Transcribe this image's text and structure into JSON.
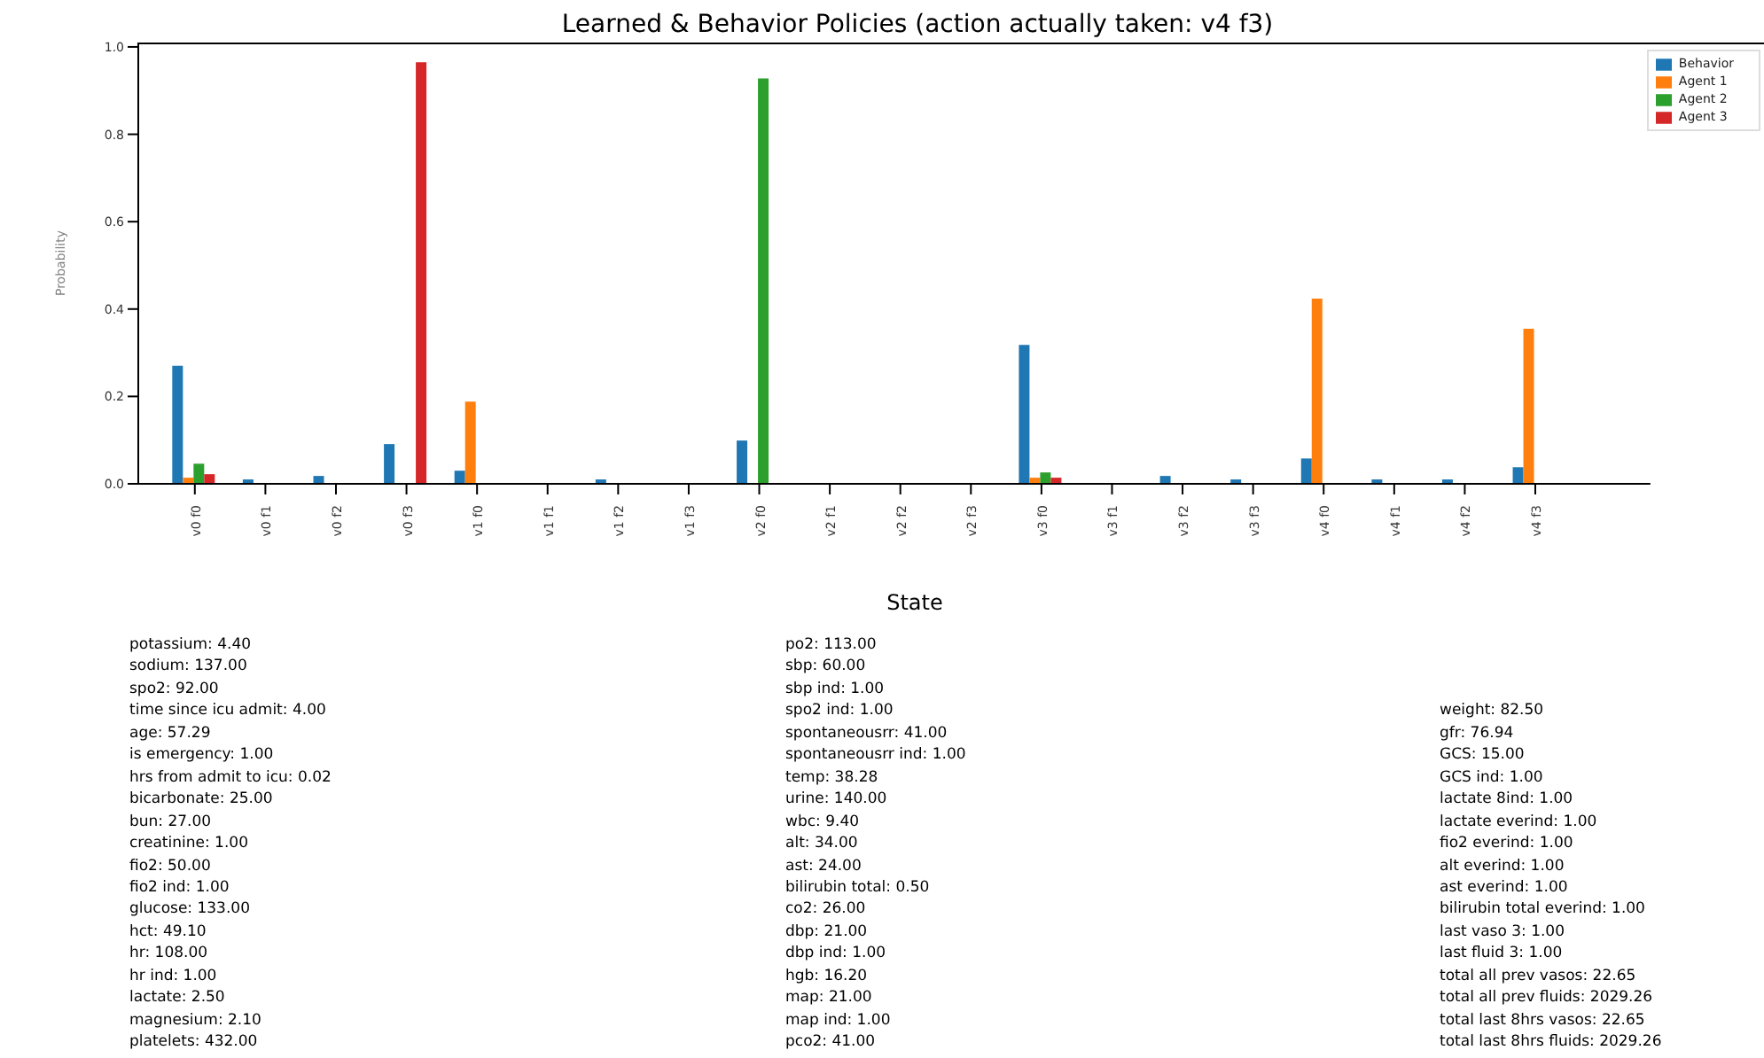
{
  "chart_data": [
    {
      "type": "bar",
      "title": "Learned & Behavior Policies (action actually taken: v4 f3)",
      "ylabel": "Probability",
      "categories": [
        "v0 f0",
        "v0 f1",
        "v0 f2",
        "v0 f3",
        "v1 f0",
        "v1 f1",
        "v1 f2",
        "v1 f3",
        "v2 f0",
        "v2 f1",
        "v2 f2",
        "v2 f3",
        "v3 f0",
        "v3 f1",
        "v3 f2",
        "v3 f3",
        "v4 f0",
        "v4 f1",
        "v4 f2",
        "v4 f3"
      ],
      "series": [
        {
          "name": "Behavior",
          "color": "#1f77b4",
          "values": [
            0.27,
            0.01,
            0.018,
            0.091,
            0.03,
            0,
            0.01,
            0,
            0.099,
            0,
            0,
            0,
            0.318,
            0,
            0.018,
            0.01,
            0.058,
            0.01,
            0.01,
            0.038
          ]
        },
        {
          "name": "Agent 1",
          "color": "#ff7f0e",
          "values": [
            0.014,
            0,
            0,
            0,
            0.188,
            0,
            0,
            0,
            0,
            0,
            0,
            0,
            0.014,
            0,
            0,
            0,
            0.424,
            0,
            0,
            0.355
          ]
        },
        {
          "name": "Agent 2",
          "color": "#2ca02c",
          "values": [
            0.046,
            0,
            0,
            0,
            0,
            0,
            0,
            0,
            0.928,
            0,
            0,
            0,
            0.026,
            0,
            0,
            0,
            0,
            0,
            0,
            0
          ]
        },
        {
          "name": "Agent 3",
          "color": "#d62728",
          "values": [
            0.022,
            0,
            0,
            0.965,
            0,
            0,
            0,
            0,
            0,
            0,
            0,
            0,
            0.014,
            0,
            0,
            0,
            0,
            0,
            0,
            0
          ]
        }
      ],
      "ylim": [
        0,
        1.01
      ],
      "yticks": [
        {
          "value": 0,
          "label": "0.0"
        },
        {
          "value": 0.2,
          "label": "0.2"
        },
        {
          "value": 0.4,
          "label": "0.4"
        },
        {
          "value": 0.6,
          "label": "0.6"
        },
        {
          "value": 0.8,
          "label": "0.8"
        },
        {
          "value": 1,
          "label": "1.0"
        }
      ],
      "legend": "top right"
    },
    {
      "type": "other",
      "title": "State",
      "annotations": [
        "potassium: 4.40",
        "sodium: 137.00",
        "spo2: 92.00",
        "time since icu admit: 4.00",
        "age: 57.29",
        "is emergency: 1.00",
        "hrs from admit to icu: 0.02",
        "bicarbonate: 25.00",
        "bun: 27.00",
        "creatinine: 1.00",
        "fio2: 50.00",
        "fio2 ind: 1.00",
        "glucose: 133.00",
        "hct: 49.10",
        "hr: 108.00",
        "hr ind: 1.00",
        "lactate: 2.50",
        "magnesium: 2.10",
        "platelets: 432.00",
        "po2: 113.00",
        "sbp: 60.00",
        "sbp ind: 1.00",
        "spo2 ind: 1.00",
        "spontaneousrr: 41.00",
        "spontaneousrr ind: 1.00",
        "temp: 38.28",
        "urine: 140.00",
        "wbc: 9.40",
        "alt: 34.00",
        "ast: 24.00",
        "bilirubin total: 0.50",
        "co2: 26.00",
        "dbp: 21.00",
        "dbp ind: 1.00",
        "hgb: 16.20",
        "map: 21.00",
        "map ind: 1.00",
        "pco2: 41.00",
        "weight: 82.50",
        "gfr: 76.94",
        "GCS: 15.00",
        "GCS ind: 1.00",
        "lactate 8ind: 1.00",
        "lactate everind: 1.00",
        "fio2 everind: 1.00",
        "alt everind: 1.00",
        "ast everind: 1.00",
        "bilirubin total everind: 1.00",
        "last vaso 3: 1.00",
        "last fluid 3: 1.00",
        "total all prev vasos: 22.65",
        "total all prev fluids: 2029.26",
        "total last 8hrs vasos: 22.65",
        "total last 8hrs fluids: 2029.26"
      ]
    }
  ]
}
